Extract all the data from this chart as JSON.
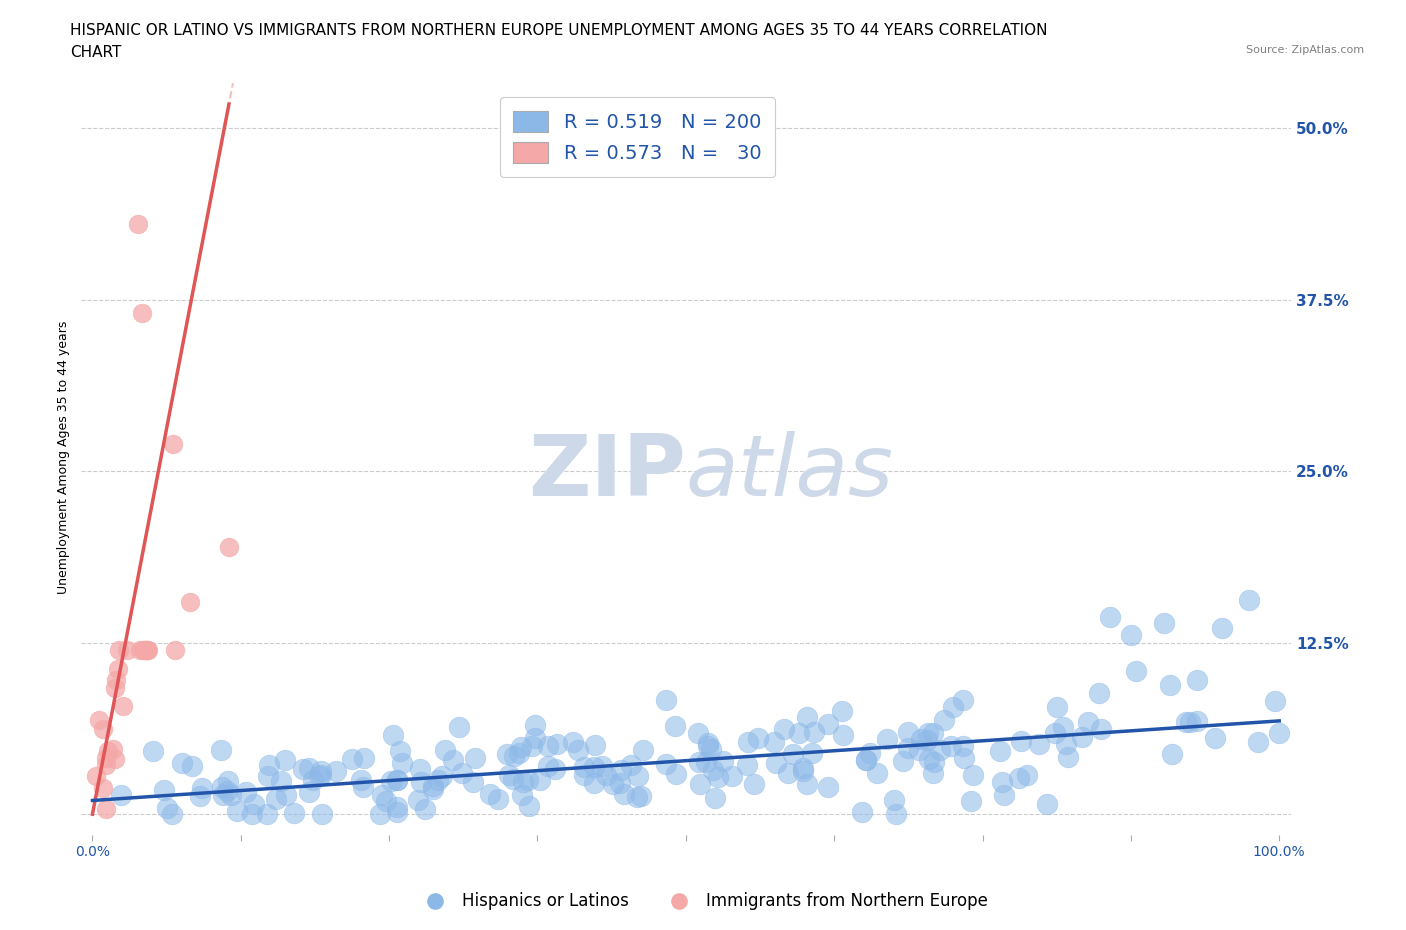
{
  "title_line1": "HISPANIC OR LATINO VS IMMIGRANTS FROM NORTHERN EUROPE UNEMPLOYMENT AMONG AGES 35 TO 44 YEARS CORRELATION",
  "title_line2": "CHART",
  "source": "Source: ZipAtlas.com",
  "ylabel": "Unemployment Among Ages 35 to 44 years",
  "ytick_values": [
    0.0,
    0.125,
    0.25,
    0.375,
    0.5
  ],
  "ytick_labels": [
    "",
    "12.5%",
    "25.0%",
    "37.5%",
    "50.0%"
  ],
  "xtick_values": [
    0.0,
    0.125,
    0.25,
    0.375,
    0.5,
    0.625,
    0.75,
    0.875,
    1.0
  ],
  "xlim": [
    -0.01,
    1.01
  ],
  "ylim": [
    -0.015,
    0.535
  ],
  "blue_color": "#8cb8e8",
  "pink_color": "#f4a8a8",
  "blue_line_color": "#2255aa",
  "pink_line_color": "#e05555",
  "pink_dash_color": "#f0b0b0",
  "grid_color": "#cccccc",
  "background_color": "#ffffff",
  "watermark_color": "#cdd9e8",
  "R_blue": 0.519,
  "N_blue": 200,
  "R_pink": 0.573,
  "N_pink": 30,
  "legend_label_blue": "Hispanics or Latinos",
  "legend_label_pink": "Immigrants from Northern Europe",
  "title_fontsize": 11,
  "axis_label_fontsize": 9,
  "tick_fontsize": 10,
  "blue_trend_slope": 0.058,
  "blue_trend_intercept": 0.01,
  "pink_trend_slope": 4.5,
  "pink_trend_intercept": 0.0,
  "pink_dash_slope": 4.5,
  "pink_dash_intercept": 0.0
}
